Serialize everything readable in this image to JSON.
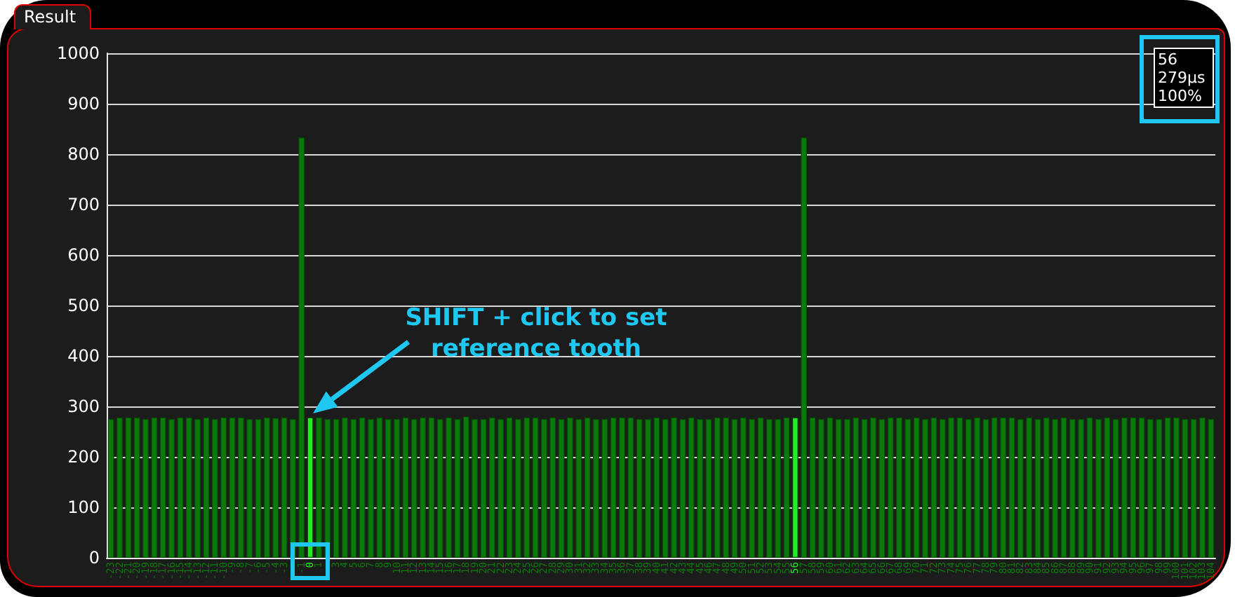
{
  "chart_data": {
    "type": "bar",
    "title": "Result",
    "categories": [
      "-23",
      "-22",
      "-21",
      "-20",
      "-19",
      "-18",
      "-17",
      "-16",
      "-15",
      "-14",
      "-13",
      "-12",
      "-11",
      "-10",
      "-9",
      "-8",
      "-7",
      "-6",
      "-5",
      "-4",
      "-3",
      null,
      "-1",
      "0",
      "1",
      null,
      "3",
      "4",
      "5",
      "6",
      "7",
      "8",
      "9",
      "10",
      "11",
      "12",
      "13",
      "14",
      "15",
      "16",
      "17",
      "18",
      "19",
      "20",
      "21",
      "22",
      "23",
      "24",
      "25",
      "26",
      "27",
      "28",
      "29",
      "30",
      "31",
      "32",
      "33",
      "34",
      "35",
      "36",
      "37",
      "38",
      "39",
      "40",
      "41",
      "42",
      "43",
      "44",
      "45",
      "46",
      "47",
      "48",
      "49",
      "50",
      "51",
      "52",
      "53",
      "54",
      "55",
      "56",
      "57",
      "58",
      "59",
      "60",
      "61",
      "62",
      "63",
      "64",
      "65",
      "66",
      "67",
      "68",
      "69",
      "70",
      "71",
      "72",
      "73",
      "74",
      "75",
      "76",
      "77",
      "78",
      "79",
      "80",
      "81",
      "82",
      "83",
      "84",
      "85",
      "86",
      "87",
      "88",
      "89",
      "90",
      "91",
      "92",
      "93",
      "94",
      "95",
      "96",
      "97",
      "98",
      "99",
      "100",
      "101",
      "102",
      "103",
      "104"
    ],
    "values": [
      275,
      278,
      278,
      278,
      275,
      278,
      278,
      275,
      278,
      278,
      275,
      278,
      275,
      278,
      278,
      278,
      275,
      275,
      278,
      277,
      278,
      275,
      833,
      278,
      278,
      275,
      275,
      278,
      275,
      278,
      275,
      278,
      275,
      275,
      278,
      275,
      278,
      278,
      275,
      278,
      275,
      280,
      275,
      275,
      278,
      275,
      278,
      275,
      278,
      278,
      275,
      278,
      275,
      278,
      275,
      278,
      275,
      275,
      278,
      278,
      278,
      275,
      275,
      278,
      275,
      278,
      275,
      278,
      275,
      275,
      278,
      278,
      275,
      278,
      275,
      278,
      275,
      275,
      278,
      278,
      833,
      278,
      275,
      278,
      275,
      275,
      278,
      275,
      278,
      275,
      278,
      278,
      275,
      278,
      275,
      278,
      275,
      278,
      278,
      275,
      278,
      275,
      278,
      278,
      278,
      275,
      278,
      275,
      278,
      275,
      278,
      275,
      275,
      278,
      275,
      278,
      275,
      278,
      278,
      278,
      275,
      275,
      278,
      278,
      275,
      275,
      278,
      275
    ],
    "colors": [
      "#0b7a0b",
      "#0b7a0b",
      "#0b7a0b",
      "#0b7a0b",
      "#0b7a0b",
      "#0b7a0b",
      "#0b7a0b",
      "#0b7a0b",
      "#0b7a0b",
      "#0b7a0b",
      "#0b7a0b",
      "#0b7a0b",
      "#0b7a0b",
      "#0b7a0b",
      "#0b7a0b",
      "#0b7a0b",
      "#0b7a0b",
      "#0b7a0b",
      "#0b7a0b",
      "#0b7a0b",
      "#0b7a0b",
      "#0b7a0b",
      "#0b7a0b",
      "#22ee22",
      "#0b7a0b",
      "#0b7a0b",
      "#0b7a0b",
      "#0b7a0b",
      "#0b7a0b",
      "#0b7a0b",
      "#0b7a0b",
      "#0b7a0b",
      "#0b7a0b",
      "#0b7a0b",
      "#0b7a0b",
      "#0b7a0b",
      "#0b7a0b",
      "#0b7a0b",
      "#0b7a0b",
      "#0b7a0b",
      "#0b7a0b",
      "#0b7a0b",
      "#0b7a0b",
      "#0b7a0b",
      "#0b7a0b",
      "#0b7a0b",
      "#0b7a0b",
      "#0b7a0b",
      "#0b7a0b",
      "#0b7a0b",
      "#0b7a0b",
      "#0b7a0b",
      "#0b7a0b",
      "#0b7a0b",
      "#0b7a0b",
      "#0b7a0b",
      "#0b7a0b",
      "#0b7a0b",
      "#0b7a0b",
      "#0b7a0b",
      "#0b7a0b",
      "#0b7a0b",
      "#0b7a0b",
      "#0b7a0b",
      "#0b7a0b",
      "#0b7a0b",
      "#0b7a0b",
      "#0b7a0b",
      "#0b7a0b",
      "#0b7a0b",
      "#0b7a0b",
      "#0b7a0b",
      "#0b7a0b",
      "#0b7a0b",
      "#0b7a0b",
      "#0b7a0b",
      "#0b7a0b",
      "#0b7a0b",
      "#0b7a0b",
      "#22ee22",
      "#0b7a0b",
      "#0b7a0b",
      "#0b7a0b",
      "#0b7a0b",
      "#0b7a0b",
      "#0b7a0b",
      "#0b7a0b",
      "#0b7a0b",
      "#0b7a0b",
      "#0b7a0b",
      "#0b7a0b",
      "#0b7a0b",
      "#0b7a0b",
      "#0b7a0b",
      "#0b7a0b",
      "#0b7a0b",
      "#0b7a0b",
      "#0b7a0b",
      "#0b7a0b",
      "#0b7a0b",
      "#0b7a0b",
      "#0b7a0b",
      "#0b7a0b",
      "#0b7a0b",
      "#0b7a0b",
      "#0b7a0b",
      "#0b7a0b",
      "#0b7a0b",
      "#0b7a0b",
      "#0b7a0b",
      "#0b7a0b",
      "#0b7a0b",
      "#0b7a0b",
      "#0b7a0b",
      "#0b7a0b",
      "#0b7a0b",
      "#0b7a0b",
      "#0b7a0b",
      "#0b7a0b",
      "#0b7a0b",
      "#0b7a0b",
      "#0b7a0b",
      "#0b7a0b",
      "#0b7a0b",
      "#0b7a0b",
      "#0b7a0b",
      "#0b7a0b",
      "#0b7a0b"
    ],
    "ylim": [
      0,
      1000
    ],
    "yticks": [
      0,
      100,
      200,
      300,
      400,
      500,
      600,
      700,
      800,
      900,
      1000
    ],
    "grid": "y",
    "annotations": [
      "SHIFT + click to set reference tooth",
      "56\n279µs\n100%"
    ]
  }
}
